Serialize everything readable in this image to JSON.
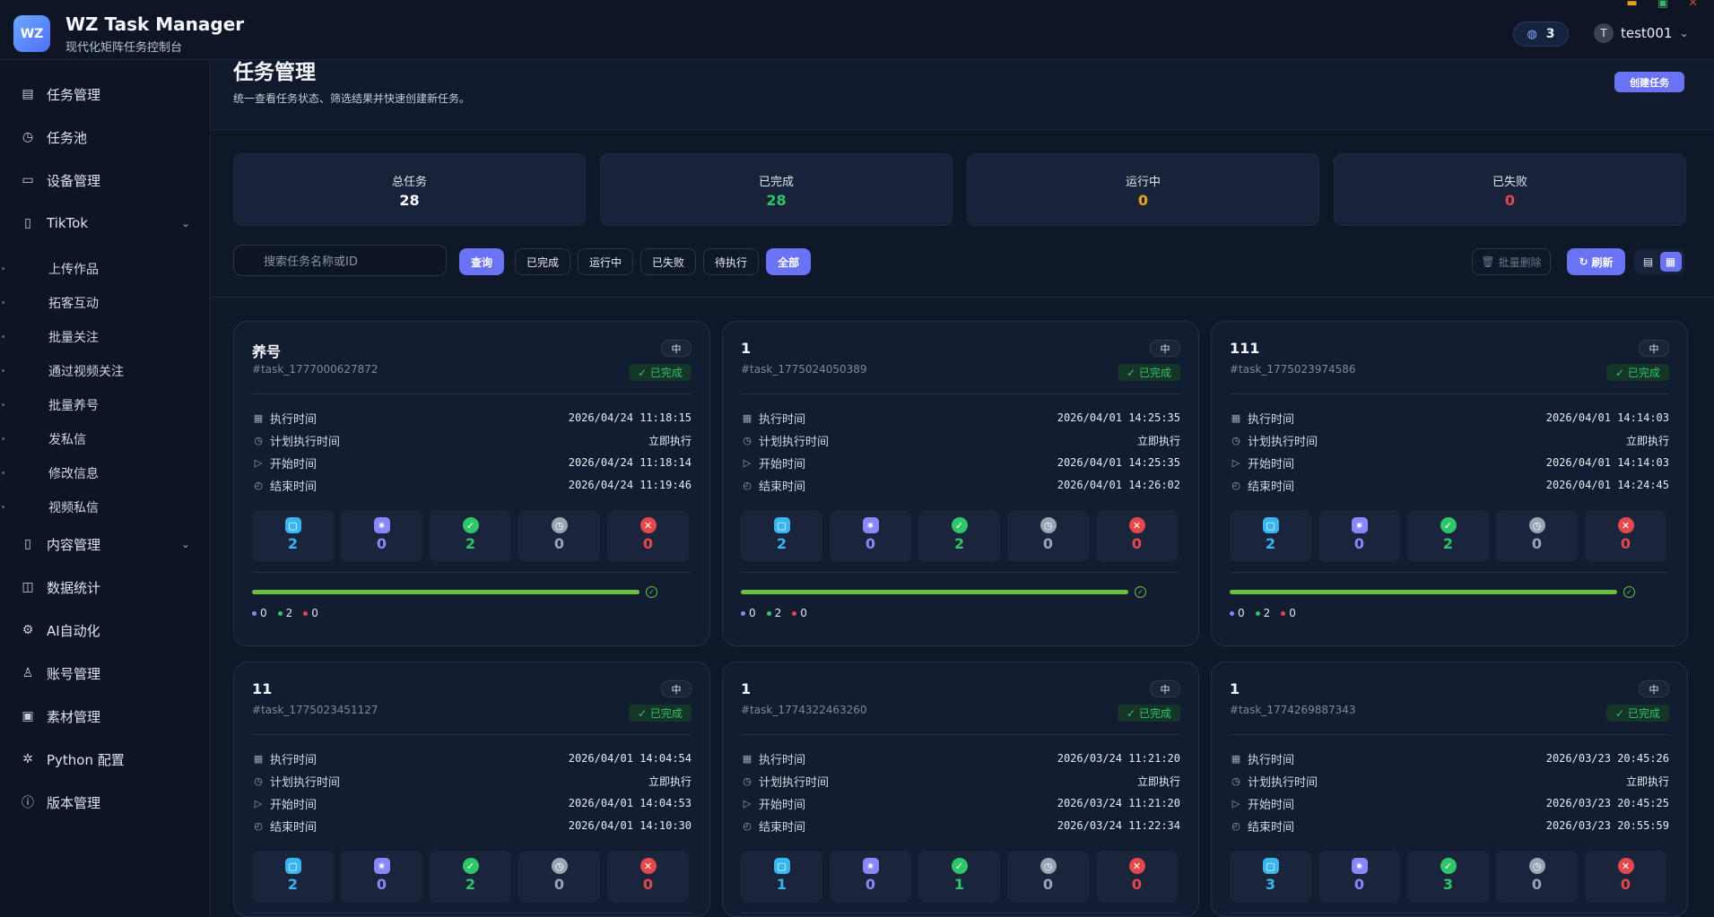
{
  "app": {
    "logo": "WZ",
    "title": "WZ Task Manager",
    "subtitle": "现代化矩阵任务控制台",
    "message_count": "3",
    "user_initial": "T",
    "user_name": "test001"
  },
  "sidebar": {
    "items": [
      {
        "label": "任务管理",
        "icon": "clipboard-icon"
      },
      {
        "label": "任务池",
        "icon": "timer-icon"
      },
      {
        "label": "设备管理",
        "icon": "monitor-icon"
      },
      {
        "label": "TikTok",
        "icon": "document-icon"
      },
      {
        "label": "内容管理",
        "icon": "document-icon"
      },
      {
        "label": "数据统计",
        "icon": "chart-icon"
      },
      {
        "label": "AI自动化",
        "icon": "chip-icon"
      },
      {
        "label": "账号管理",
        "icon": "user-icon"
      },
      {
        "label": "素材管理",
        "icon": "save-icon"
      },
      {
        "label": "Python 配置",
        "icon": "gear-icon"
      },
      {
        "label": "版本管理",
        "icon": "info-icon"
      }
    ],
    "tiktok_sub": [
      "上传作品",
      "拓客互动",
      "批量关注",
      "通过视频关注",
      "批量养号",
      "发私信",
      "修改信息",
      "视频私信"
    ]
  },
  "page": {
    "title": "任务管理",
    "description": "统一查看任务状态、筛选结果并快速创建新任务。",
    "create_label": "创建任务"
  },
  "stats": [
    {
      "label": "总任务",
      "value": "28",
      "color": "#ffffff"
    },
    {
      "label": "已完成",
      "value": "28",
      "color": "#2fc66a"
    },
    {
      "label": "运行中",
      "value": "0",
      "color": "#e8a317"
    },
    {
      "label": "已失败",
      "value": "0",
      "color": "#e5484d"
    }
  ],
  "filters": {
    "search_placeholder": "搜索任务名称或ID",
    "query": "查询",
    "done": "已完成",
    "running": "运行中",
    "failed": "已失败",
    "pending": "待执行",
    "all": "全部",
    "batch_delete": "批量删除",
    "refresh": "刷新"
  },
  "labels": {
    "exec_time": "执行时间",
    "planned_time": "计划执行时间",
    "start_time": "开始时间",
    "end_time": "结束时间",
    "priority": "中",
    "status": "已完成"
  },
  "tasks": [
    {
      "name": "养号",
      "id": "#task_1777000627872",
      "exec": "2026/04/24 11:18:15",
      "planned": "立即执行",
      "start": "2026/04/24 11:18:14",
      "end": "2026/04/24 11:19:46",
      "metrics": [
        "2",
        "0",
        "2",
        "0",
        "0"
      ],
      "legend": [
        "0",
        "2",
        "0"
      ],
      "progress": 1.0
    },
    {
      "name": "1",
      "id": "#task_1775024050389",
      "exec": "2026/04/01 14:25:35",
      "planned": "立即执行",
      "start": "2026/04/01 14:25:35",
      "end": "2026/04/01 14:26:02",
      "metrics": [
        "2",
        "0",
        "2",
        "0",
        "0"
      ],
      "legend": [
        "0",
        "2",
        "0"
      ],
      "progress": 1.0
    },
    {
      "name": "111",
      "id": "#task_1775023974586",
      "exec": "2026/04/01 14:14:03",
      "planned": "立即执行",
      "start": "2026/04/01 14:14:03",
      "end": "2026/04/01 14:24:45",
      "metrics": [
        "2",
        "0",
        "2",
        "0",
        "0"
      ],
      "legend": [
        "0",
        "2",
        "0"
      ],
      "progress": 1.0
    },
    {
      "name": "11",
      "id": "#task_1775023451127",
      "exec": "2026/04/01 14:04:54",
      "planned": "立即执行",
      "start": "2026/04/01 14:04:53",
      "end": "2026/04/01 14:10:30",
      "metrics": [
        "2",
        "0",
        "2",
        "0",
        "0"
      ]
    },
    {
      "name": "1",
      "id": "#task_1774322463260",
      "exec": "2026/03/24 11:21:20",
      "planned": "立即执行",
      "start": "2026/03/24 11:21:20",
      "end": "2026/03/24 11:22:34",
      "metrics": [
        "1",
        "0",
        "1",
        "0",
        "0"
      ]
    },
    {
      "name": "1",
      "id": "#task_1774269887343",
      "exec": "2026/03/23 20:45:26",
      "planned": "立即执行",
      "start": "2026/03/23 20:45:25",
      "end": "2026/03/23 20:55:59",
      "metrics": [
        "3",
        "0",
        "3",
        "0",
        "0"
      ]
    }
  ],
  "metric_colors": [
    "#38b6f0",
    "#8b86ff",
    "#2fc66a",
    "#9aa4b6",
    "#e5484d"
  ]
}
